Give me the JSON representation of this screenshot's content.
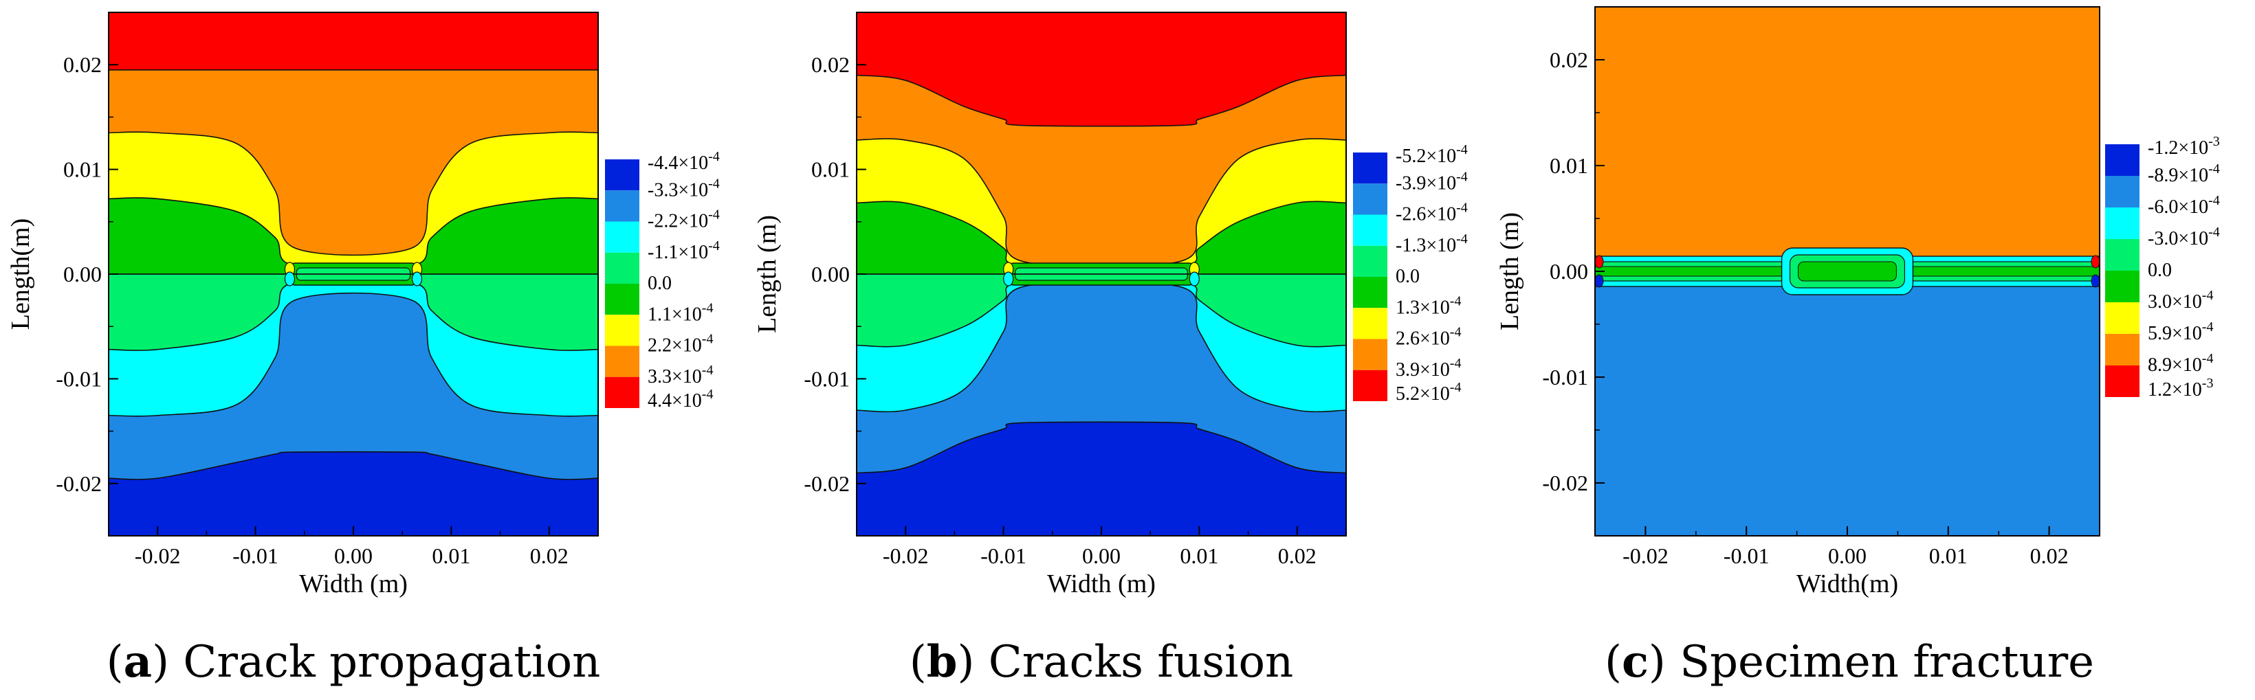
{
  "chart_data": [
    {
      "type": "heatmap",
      "panel_label": "a",
      "caption": "Crack propagation",
      "xlabel": "Width (m)",
      "ylabel": "Length(m)",
      "xlim": [
        -0.025,
        0.025
      ],
      "ylim": [
        -0.025,
        0.025
      ],
      "x_ticks": [
        "-0.02",
        "-0.01",
        "0.00",
        "0.01",
        "0.02"
      ],
      "y_ticks": [
        "0.02",
        "0.01",
        "0.00",
        "-0.01",
        "-0.02"
      ],
      "legend": {
        "labels": [
          "-4.4×10",
          "-3.3×10",
          "-2.2×10",
          "-1.1×10",
          "0.0",
          "1.1×10",
          "2.2×10",
          "3.3×10",
          "4.4×10"
        ],
        "exponents": [
          "-4",
          "-4",
          "-4",
          "-4",
          "",
          "-4",
          "-4",
          "-4",
          "-4"
        ],
        "colors": [
          "#0022dd",
          "#1e88e5",
          "#00ffff",
          "#00f06e",
          "#00cc00",
          "#ffff00",
          "#ff8c00",
          "#ff0000"
        ]
      },
      "feature": "horizontal crack at y = 0 from x = -0.0065 to 0.0065",
      "crack_x": [
        -0.0065,
        0.0065
      ],
      "contours_x": [
        -0.025,
        -0.02,
        -0.012,
        -0.008,
        -0.006,
        0.006,
        0.008,
        0.012,
        0.02,
        0.025
      ],
      "contours_top": [
        [
          0.0195,
          0.0195,
          0.0195,
          0.0195,
          0.0195,
          0.0195,
          0.0195,
          0.0195,
          0.0195,
          0.0195
        ],
        [
          0.0135,
          0.0135,
          0.0125,
          0.008,
          0.0025,
          0.0025,
          0.008,
          0.0125,
          0.0135,
          0.0135
        ],
        [
          0.0072,
          0.0072,
          0.006,
          0.0035,
          0.0008,
          0.0008,
          0.0035,
          0.006,
          0.0072,
          0.0072
        ]
      ],
      "contours_bottom": [
        [
          -0.0072,
          -0.0072,
          -0.006,
          -0.0035,
          -0.0008,
          -0.0008,
          -0.0035,
          -0.006,
          -0.0072,
          -0.0072
        ],
        [
          -0.0135,
          -0.0135,
          -0.0125,
          -0.008,
          -0.0025,
          -0.0025,
          -0.008,
          -0.0125,
          -0.0135,
          -0.0135
        ],
        [
          -0.0195,
          -0.0195,
          -0.018,
          -0.0172,
          -0.017,
          -0.017,
          -0.0172,
          -0.018,
          -0.0195,
          -0.0195
        ]
      ],
      "fills_top": [
        "#ff8c00",
        "#ffff00",
        "#00cc00"
      ],
      "fills_bottom": [
        "#00ffff",
        "#1e88e5",
        "#0022dd"
      ],
      "fill_top_band": "#ff0000",
      "fill_mid_top": "#00cc00",
      "fill_mid_bottom": "#00f06e"
    },
    {
      "type": "heatmap",
      "panel_label": "b",
      "caption": "Cracks fusion",
      "xlabel": "Width (m)",
      "ylabel": "Length (m)",
      "xlim": [
        -0.025,
        0.025
      ],
      "ylim": [
        -0.025,
        0.025
      ],
      "x_ticks": [
        "-0.02",
        "-0.01",
        "0.00",
        "0.01",
        "0.02"
      ],
      "y_ticks": [
        "0.02",
        "0.01",
        "0.00",
        "-0.01",
        "-0.02"
      ],
      "legend": {
        "labels": [
          "-5.2×10",
          "-3.9×10",
          "-2.6×10",
          "-1.3×10",
          "0.0",
          "1.3×10",
          "2.6×10",
          "3.9×10",
          "5.2×10"
        ],
        "exponents": [
          "-4",
          "-4",
          "-4",
          "-4",
          "",
          "-4",
          "-4",
          "-4",
          "-4"
        ],
        "colors": [
          "#0022dd",
          "#1e88e5",
          "#00ffff",
          "#00f06e",
          "#00cc00",
          "#ffff00",
          "#ff8c00",
          "#ff0000"
        ]
      },
      "feature": "fused crack at y = 0 from x = -0.0095 to 0.0095",
      "crack_x": [
        -0.0095,
        0.0095
      ],
      "contours_x": [
        -0.025,
        -0.02,
        -0.014,
        -0.01,
        -0.008,
        0.008,
        0.01,
        0.014,
        0.02,
        0.025
      ],
      "contours_top": [
        [
          0.019,
          0.0185,
          0.016,
          0.0148,
          0.0142,
          0.0142,
          0.0148,
          0.016,
          0.0185,
          0.019
        ],
        [
          0.0128,
          0.0128,
          0.011,
          0.0055,
          0.0012,
          0.0012,
          0.0055,
          0.011,
          0.0128,
          0.0128
        ],
        [
          0.0068,
          0.0068,
          0.005,
          0.0025,
          0.0008,
          0.0008,
          0.0025,
          0.005,
          0.0068,
          0.0068
        ]
      ],
      "contours_bottom": [
        [
          -0.0068,
          -0.0068,
          -0.005,
          -0.0025,
          -0.0008,
          -0.0008,
          -0.0025,
          -0.005,
          -0.0068,
          -0.0068
        ],
        [
          -0.013,
          -0.013,
          -0.011,
          -0.0055,
          -0.0012,
          -0.0012,
          -0.0055,
          -0.011,
          -0.013,
          -0.013
        ],
        [
          -0.019,
          -0.0185,
          -0.016,
          -0.0148,
          -0.0142,
          -0.0142,
          -0.0148,
          -0.016,
          -0.0185,
          -0.019
        ]
      ],
      "fills_top": [
        "#ff8c00",
        "#ffff00",
        "#00cc00"
      ],
      "fills_bottom": [
        "#00ffff",
        "#1e88e5",
        "#0022dd"
      ],
      "fill_top_band": "#ff0000",
      "fill_mid_top": "#00cc00",
      "fill_mid_bottom": "#00f06e"
    },
    {
      "type": "heatmap",
      "panel_label": "c",
      "caption": "Specimen fracture",
      "xlabel": "Width(m)",
      "ylabel": "Length (m)",
      "xlim": [
        -0.025,
        0.025
      ],
      "ylim": [
        -0.025,
        0.025
      ],
      "x_ticks": [
        "-0.02",
        "-0.01",
        "0.00",
        "0.01",
        "0.02"
      ],
      "y_ticks": [
        "0.02",
        "0.01",
        "0.00",
        "-0.01",
        "-0.02"
      ],
      "legend": {
        "labels": [
          "-1.2×10",
          "-8.9×10",
          "-6.0×10",
          "-3.0×10",
          "0.0",
          "3.0×10",
          "5.9×10",
          "8.9×10",
          "1.2×10"
        ],
        "exponents": [
          "-3",
          "-4",
          "-4",
          "-4",
          "",
          "-4",
          "-4",
          "-4",
          "-3"
        ],
        "colors": [
          "#0022dd",
          "#1e88e5",
          "#00ffff",
          "#00f06e",
          "#00cc00",
          "#ffff00",
          "#ff8c00",
          "#ff0000"
        ]
      },
      "feature": "fracture across the full width at y = 0",
      "crack_x": [
        -0.025,
        0.025
      ],
      "upper_fill": "#ff8c00",
      "lower_fill": "#1e88e5"
    }
  ]
}
